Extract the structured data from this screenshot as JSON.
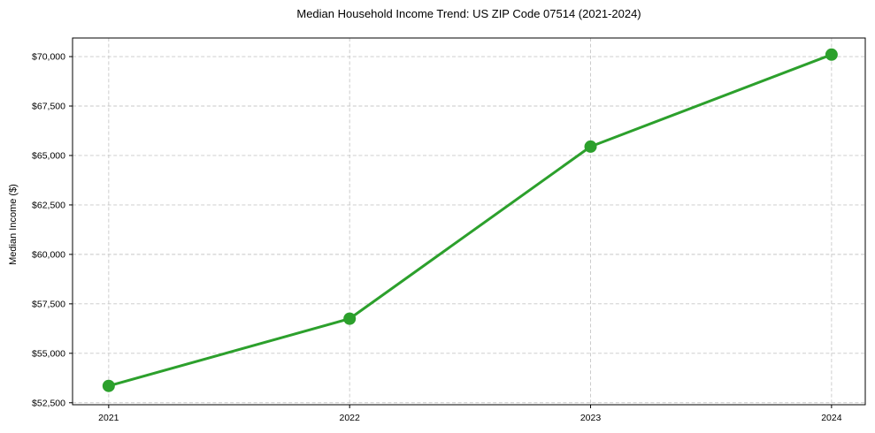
{
  "chart_data": {
    "type": "line",
    "title": "Median Household Income Trend: US ZIP Code 07514 (2021-2024)",
    "xlabel": "",
    "ylabel": "Median Income ($)",
    "x": [
      2021,
      2022,
      2023,
      2024
    ],
    "xtick_labels": [
      "2021",
      "2022",
      "2023",
      "2024"
    ],
    "series": [
      {
        "name": "median_household_income",
        "values": [
          53350,
          56750,
          65450,
          70100
        ],
        "color": "#2ca02c"
      }
    ],
    "yticks": [
      52500,
      55000,
      57500,
      60000,
      62500,
      65000,
      67500,
      70000
    ],
    "ytick_labels": [
      "$52,500",
      "$55,000",
      "$57,500",
      "$60,000",
      "$62,500",
      "$65,000",
      "$67,500",
      "$70,000"
    ],
    "xlim": [
      2020.85,
      2024.14
    ],
    "ylim": [
      52400,
      70940
    ],
    "grid": true,
    "grid_style": "dashed",
    "grid_color": "#c8c8c8",
    "legend_position": "none",
    "background_color": "#ffffff",
    "frame_color": "#000000",
    "text_color": "#000000",
    "marker": "circle",
    "marker_radius": 7,
    "line_width": 3
  }
}
